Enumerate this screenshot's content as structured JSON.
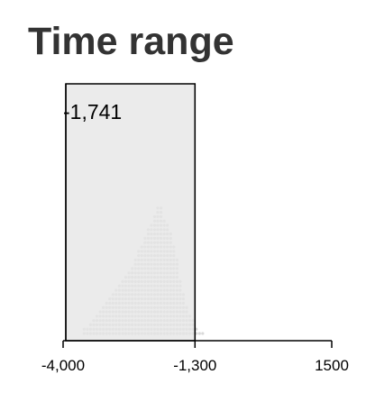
{
  "title": "Time range",
  "axis": {
    "min": -4000,
    "max": 1500,
    "tick_values": [
      -4000,
      -1300,
      1500
    ],
    "tick_labels": [
      "-4,000",
      "-1,300",
      "1500"
    ]
  },
  "selection": {
    "start": -4000,
    "end": -1300,
    "readout": "-1,741"
  },
  "distribution": {
    "dot_color": "#d9d9d9",
    "column_start": -3570,
    "column_step": 65.6,
    "column_counts": [
      2,
      2,
      3,
      4,
      5,
      6,
      7,
      8,
      9,
      10,
      11,
      12,
      13,
      14,
      15,
      16,
      18,
      20,
      21,
      23,
      25,
      26,
      28,
      30,
      30,
      27,
      26,
      24,
      21,
      18,
      13,
      10,
      7,
      5,
      4,
      2,
      1,
      1
    ]
  },
  "colors": {
    "selection_fill": "#e6e6e6",
    "selection_stroke": "#000000",
    "axis": "#000000",
    "title": "#333333"
  }
}
